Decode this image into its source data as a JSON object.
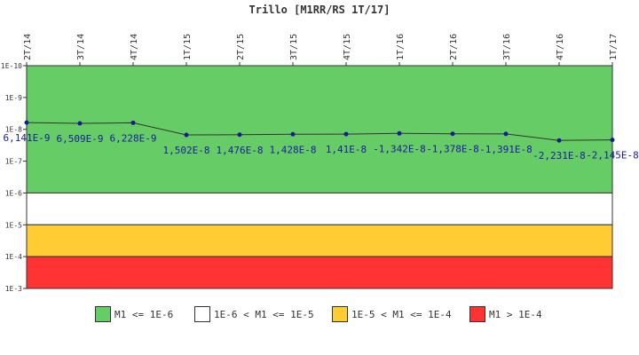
{
  "chart_data": {
    "type": "line",
    "title": "Trillo [M1RR/RS 1T/17]",
    "categories": [
      "2T/14",
      "3T/14",
      "4T/14",
      "1T/15",
      "2T/15",
      "3T/15",
      "4T/15",
      "1T/16",
      "2T/16",
      "3T/16",
      "4T/16",
      "1T/17"
    ],
    "values": [
      6.141e-09,
      6.509e-09,
      6.228e-09,
      1.502e-08,
      1.476e-08,
      1.428e-08,
      1.41e-08,
      -1.342e-08,
      -1.378e-08,
      -1.391e-08,
      -2.231e-08,
      -2.145e-08
    ],
    "data_labels": [
      "6,141E-9",
      "6,509E-9",
      "6,228E-9",
      "1,502E-8",
      "1,476E-8",
      "1,428E-8",
      "1,41E-8",
      "-1,342E-8",
      "-1,378E-8",
      "-1,391E-8",
      "-2,231E-8",
      "-2,145E-8"
    ],
    "y_scale": "log",
    "y_axis_reversed": true,
    "ylim": [
      1e-10,
      0.001
    ],
    "y_tick_labels": [
      "1E-10",
      "1E-9",
      "1E-8",
      "1E-7",
      "1E-6",
      "1E-5",
      "1E-4",
      "1E-3"
    ],
    "x_axis_position": "top",
    "bands": [
      {
        "label": "M1 <= 1E-6",
        "from": 1e-10,
        "to": 1e-06,
        "color": "#66cc66"
      },
      {
        "label": "1E-6 < M1 <= 1E-5",
        "from": 1e-06,
        "to": 1e-05,
        "color": "#ffffff"
      },
      {
        "label": "1E-5 < M1 <= 1E-4",
        "from": 1e-05,
        "to": 0.0001,
        "color": "#ffcc33"
      },
      {
        "label": "M1 > 1E-4",
        "from": 0.0001,
        "to": 0.001,
        "color": "#ff3333"
      }
    ],
    "line_color": "#333333",
    "marker_color": "#1a1a99",
    "label_color": "#1a1aa6",
    "legend_position": "bottom"
  }
}
